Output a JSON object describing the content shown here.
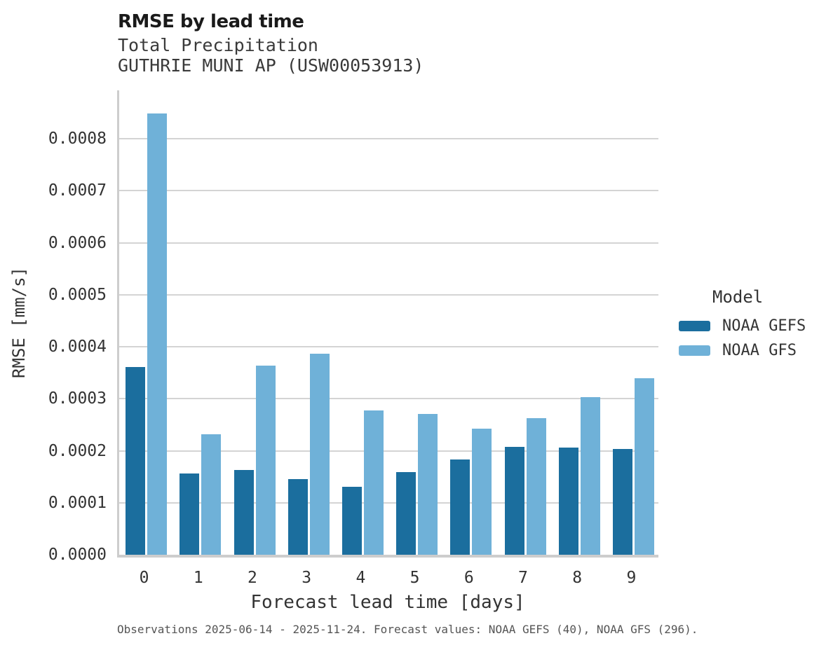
{
  "chart_data": {
    "type": "bar",
    "title": "RMSE by lead time",
    "subtitle": [
      "Total Precipitation",
      "GUTHRIE MUNI AP (USW00053913)"
    ],
    "xlabel": "Forecast lead time [days]",
    "ylabel": "RMSE [mm/s]",
    "categories": [
      "0",
      "1",
      "2",
      "3",
      "4",
      "5",
      "6",
      "7",
      "8",
      "9"
    ],
    "series": [
      {
        "name": "NOAA GEFS",
        "color": "#1b6e9e",
        "values": [
          0.000361,
          0.000156,
          0.000163,
          0.000146,
          0.00013,
          0.000159,
          0.000183,
          0.000207,
          0.000206,
          0.000203
        ]
      },
      {
        "name": "NOAA GFS",
        "color": "#6fb1d8",
        "values": [
          0.000848,
          0.000231,
          0.000364,
          0.000386,
          0.000277,
          0.000271,
          0.000242,
          0.000262,
          0.000303,
          0.00034
        ]
      }
    ],
    "ylim": [
      0,
      0.000893
    ],
    "y_ticks": [
      "0.0000",
      "0.0001",
      "0.0002",
      "0.0003",
      "0.0004",
      "0.0005",
      "0.0006",
      "0.0007",
      "0.0008"
    ],
    "grid": true,
    "legend_position": "right",
    "legend_title": "Model",
    "footer": "Observations 2025-06-14 - 2025-11-24. Forecast values: NOAA GEFS (40), NOAA GFS (296)."
  },
  "colors": {
    "gridline": "#d4d4d4",
    "spine": "#cdcdcd",
    "title_text": "#1a1a1a",
    "subtitle_text": "#3a3a3a",
    "tick_text": "#333333",
    "footer_text": "#555555",
    "background": "#ffffff"
  }
}
